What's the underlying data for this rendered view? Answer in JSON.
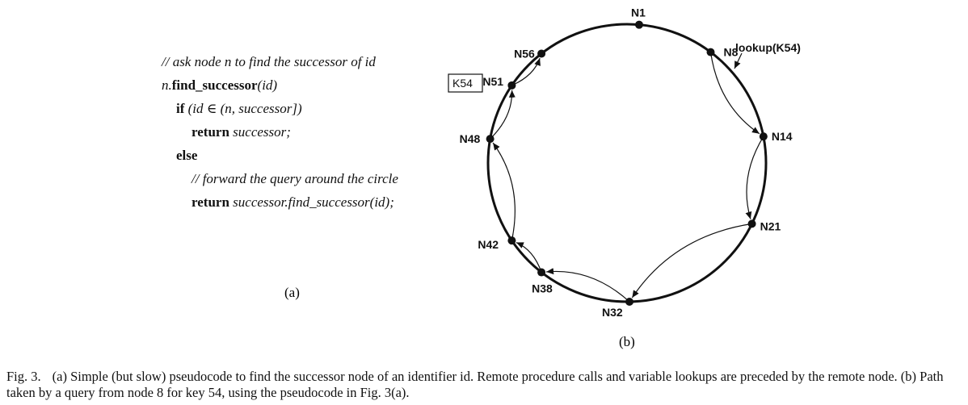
{
  "pseudocode": {
    "comment1": "// ask node n to find the successor of id",
    "sig_prefix": "n.",
    "sig_fn": "find_successor",
    "sig_arg": "(id)",
    "if_kw": "if",
    "if_cond": "(id ∈ (n, successor])",
    "return_kw": "return",
    "return_val": "successor;",
    "else_kw": "else",
    "comment2": "// forward the query around the circle",
    "return2_kw": "return",
    "return2_val": "successor.find_successor(id);",
    "label": "(a)"
  },
  "ring": {
    "label": "(b)",
    "lookup_label": "lookup(K54)",
    "key_label": "K54",
    "nodes": [
      {
        "id": "N1",
        "name": "node-n1"
      },
      {
        "id": "N8",
        "name": "node-n8"
      },
      {
        "id": "N14",
        "name": "node-n14"
      },
      {
        "id": "N21",
        "name": "node-n21"
      },
      {
        "id": "N32",
        "name": "node-n32"
      },
      {
        "id": "N38",
        "name": "node-n38"
      },
      {
        "id": "N42",
        "name": "node-n42"
      },
      {
        "id": "N48",
        "name": "node-n48"
      },
      {
        "id": "N51",
        "name": "node-n51"
      },
      {
        "id": "N56",
        "name": "node-n56"
      }
    ],
    "query_path": [
      "N8",
      "N14",
      "N21",
      "N32",
      "N38",
      "N42",
      "N48",
      "N51",
      "N56"
    ]
  },
  "caption": {
    "fig": "Fig. 3.",
    "text": "(a) Simple (but slow) pseudocode to find the successor node of an identifier id. Remote procedure calls and variable lookups are preceded by the remote node. (b) Path taken by a query from node 8 for key 54, using the pseudocode in Fig. 3(a)."
  }
}
